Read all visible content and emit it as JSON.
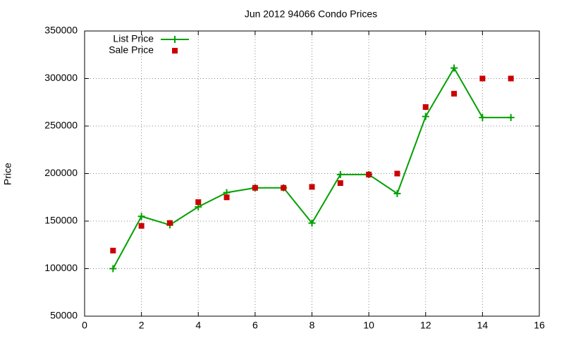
{
  "chart_data": {
    "type": "line",
    "title": "Jun 2012 94066 Condo Prices",
    "y_label": "Price",
    "x": [
      1,
      2,
      3,
      4,
      5,
      6,
      7,
      8,
      9,
      10,
      11,
      12,
      13,
      14,
      15
    ],
    "series": [
      {
        "name": "List Price",
        "color": "#00a000",
        "style": "linespoints",
        "marker": "plus",
        "values": [
          100000,
          155000,
          146000,
          165000,
          180000,
          185000,
          185000,
          148000,
          199000,
          199000,
          179000,
          260000,
          311000,
          259000,
          259000
        ]
      },
      {
        "name": "Sale Price",
        "color": "#cc0000",
        "style": "points",
        "marker": "square",
        "values": [
          119000,
          145000,
          148000,
          170000,
          175000,
          185000,
          185000,
          186000,
          190000,
          199000,
          200000,
          270000,
          284000,
          300000,
          300000
        ]
      }
    ],
    "xlim": [
      0,
      16
    ],
    "xticks": [
      0,
      2,
      4,
      6,
      8,
      10,
      12,
      14,
      16
    ],
    "ylim": [
      50000,
      350000
    ],
    "yticks": [
      50000,
      100000,
      150000,
      200000,
      250000,
      300000,
      350000
    ],
    "grid": true,
    "legend": "top left"
  }
}
